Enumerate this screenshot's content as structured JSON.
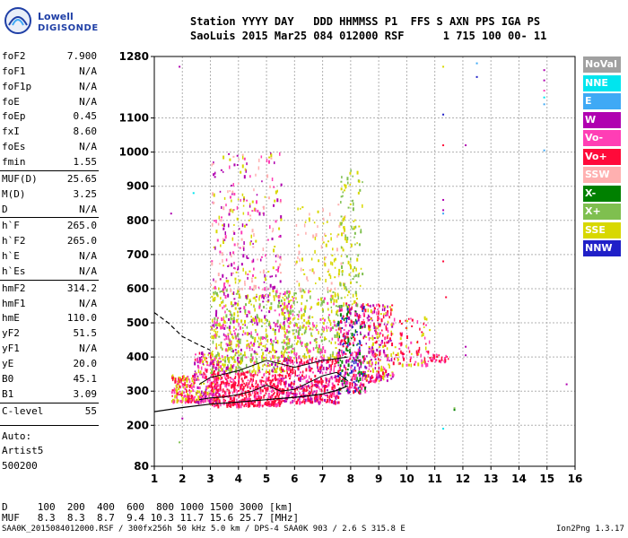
{
  "logo": {
    "line1": "Lowell",
    "line2": "DIGISONDE"
  },
  "header": {
    "row1": "Station YYYY DAY   DDD HHMMSS P1  FFS S AXN PPS IGA PS",
    "row2": "SaoLuis 2015 Mar25 084 012000 RSF      1 715 100 00- 11"
  },
  "params": [
    {
      "name": "foF2",
      "value": "7.900"
    },
    {
      "name": "foF1",
      "value": "N/A"
    },
    {
      "name": "foF1p",
      "value": "N/A"
    },
    {
      "name": "foE",
      "value": "N/A"
    },
    {
      "name": "foEp",
      "value": "0.45"
    },
    {
      "name": "fxI",
      "value": "8.60"
    },
    {
      "name": "foEs",
      "value": "N/A"
    },
    {
      "name": "fmin",
      "value": "1.55"
    },
    {
      "name": "MUF(D)",
      "value": "25.65"
    },
    {
      "name": "M(D)",
      "value": "3.25"
    },
    {
      "name": "D",
      "value": "N/A"
    },
    {
      "name": "h`F",
      "value": "265.0"
    },
    {
      "name": "h`F2",
      "value": "265.0"
    },
    {
      "name": "h`E",
      "value": "N/A"
    },
    {
      "name": "h`Es",
      "value": "N/A"
    },
    {
      "name": "hmF2",
      "value": "314.2"
    },
    {
      "name": "hmF1",
      "value": "N/A"
    },
    {
      "name": "hmE",
      "value": "110.0"
    },
    {
      "name": "yF2",
      "value": "51.5"
    },
    {
      "name": "yF1",
      "value": "N/A"
    },
    {
      "name": "yE",
      "value": "20.0"
    },
    {
      "name": "B0",
      "value": "45.1"
    },
    {
      "name": "B1",
      "value": "3.09"
    },
    {
      "name": "C-level",
      "value": "55"
    }
  ],
  "auto": {
    "line1": "Auto:",
    "line2": "Artist5",
    "line3": "500200"
  },
  "muf_table": {
    "row1": "D     100  200  400  600  800 1000 1500 3000 [km]",
    "row2": "MUF   8.3  8.3  8.7  9.4 10.3 11.7 15.6 25.7 [MHz]"
  },
  "footer": {
    "left": "SAA0K_2015084012000.RSF / 300fx256h 50 kHz 5.0 km / DPS-4 SAA0K 903 / 2.6 S 315.8 E",
    "right": "Ion2Png 1.3.17"
  },
  "legend": [
    {
      "label": "NoVal",
      "color": "#a0a0a0"
    },
    {
      "label": "NNE",
      "color": "#00e5ee"
    },
    {
      "label": "E",
      "color": "#3fa9f5"
    },
    {
      "label": "W",
      "color": "#b000b0"
    },
    {
      "label": "Vo-",
      "color": "#ff3eb5"
    },
    {
      "label": "Vo+",
      "color": "#ff0a3a"
    },
    {
      "label": "SSW",
      "color": "#ffb0b0"
    },
    {
      "label": "X-",
      "color": "#008000"
    },
    {
      "label": "X+",
      "color": "#7fbf4f"
    },
    {
      "label": "SSE",
      "color": "#d8d800"
    },
    {
      "label": "NNW",
      "color": "#2020c8"
    }
  ],
  "chart_data": {
    "type": "scatter",
    "x_ticks": [
      1,
      2,
      3,
      4,
      5,
      6,
      7,
      8,
      9,
      10,
      11,
      12,
      13,
      14,
      15,
      16
    ],
    "y_ticks": [
      80,
      200,
      300,
      400,
      500,
      600,
      700,
      800,
      900,
      1000,
      1100,
      1280
    ],
    "xlim": [
      1,
      16
    ],
    "ylim": [
      80,
      1280
    ],
    "grid": true,
    "echo_blobs": [
      {
        "x0": 1.6,
        "x1": 2.4,
        "y0": 270,
        "y1": 350,
        "n": 160,
        "colors": [
          "#ff0a3a",
          "#ff3eb5",
          "#d8d800"
        ]
      },
      {
        "x0": 2.4,
        "x1": 3.3,
        "y0": 270,
        "y1": 420,
        "n": 220,
        "colors": [
          "#ff0a3a",
          "#ff3eb5",
          "#d8d800",
          "#b000b0"
        ]
      },
      {
        "x0": 3.0,
        "x1": 5.5,
        "y0": 260,
        "y1": 360,
        "n": 500,
        "colors": [
          "#ff0a3a",
          "#ff3eb5",
          "#ff0a3a"
        ]
      },
      {
        "x0": 3.0,
        "x1": 5.8,
        "y0": 360,
        "y1": 600,
        "n": 600,
        "colors": [
          "#d8d800",
          "#d8d800",
          "#7fbf4f",
          "#ff3eb5",
          "#b000b0"
        ]
      },
      {
        "x0": 3.0,
        "x1": 5.5,
        "y0": 600,
        "y1": 1000,
        "n": 280,
        "colors": [
          "#d8d800",
          "#ff3eb5",
          "#ffb0b0",
          "#b000b0"
        ]
      },
      {
        "x0": 5.5,
        "x1": 7.6,
        "y0": 270,
        "y1": 400,
        "n": 420,
        "colors": [
          "#ff0a3a",
          "#ff0a3a",
          "#ff3eb5",
          "#b000b0"
        ]
      },
      {
        "x0": 5.5,
        "x1": 7.6,
        "y0": 400,
        "y1": 600,
        "n": 300,
        "colors": [
          "#d8d800",
          "#7fbf4f",
          "#ff3eb5"
        ]
      },
      {
        "x0": 6.0,
        "x1": 7.8,
        "y0": 600,
        "y1": 850,
        "n": 100,
        "colors": [
          "#d8d800",
          "#ffb0b0"
        ]
      },
      {
        "x0": 7.5,
        "x1": 8.5,
        "y0": 300,
        "y1": 560,
        "n": 340,
        "colors": [
          "#ff0a3a",
          "#b000b0",
          "#ff3eb5",
          "#2020c8",
          "#008000"
        ]
      },
      {
        "x0": 7.6,
        "x1": 8.4,
        "y0": 550,
        "y1": 950,
        "n": 110,
        "colors": [
          "#d8d800",
          "#7fbf4f"
        ]
      },
      {
        "x0": 8.5,
        "x1": 9.5,
        "y0": 330,
        "y1": 560,
        "n": 260,
        "colors": [
          "#ff0a3a",
          "#d8d800",
          "#ff3eb5",
          "#b000b0"
        ]
      },
      {
        "x0": 9.5,
        "x1": 10.8,
        "y0": 380,
        "y1": 520,
        "n": 90,
        "colors": [
          "#ff0a3a",
          "#d8d800",
          "#ff3eb5"
        ]
      },
      {
        "x0": 10.8,
        "x1": 11.5,
        "y0": 390,
        "y1": 410,
        "n": 30,
        "colors": [
          "#ff0a3a",
          "#ff3eb5"
        ]
      }
    ],
    "sparse_points": [
      {
        "x": 1.9,
        "y": 1250,
        "color": "#b000b0"
      },
      {
        "x": 2.4,
        "y": 880,
        "color": "#00e5ee"
      },
      {
        "x": 1.6,
        "y": 820,
        "color": "#b000b0"
      },
      {
        "x": 11.3,
        "y": 1250,
        "color": "#d8d800"
      },
      {
        "x": 11.3,
        "y": 1110,
        "color": "#2020c8"
      },
      {
        "x": 11.3,
        "y": 1020,
        "color": "#ff0a3a"
      },
      {
        "x": 11.3,
        "y": 860,
        "color": "#b000b0"
      },
      {
        "x": 11.3,
        "y": 830,
        "color": "#b000b0"
      },
      {
        "x": 11.3,
        "y": 820,
        "color": "#3fa9f5"
      },
      {
        "x": 11.3,
        "y": 680,
        "color": "#ff0a3a"
      },
      {
        "x": 11.4,
        "y": 575,
        "color": "#ff0a3a"
      },
      {
        "x": 11.3,
        "y": 190,
        "color": "#00e5ee"
      },
      {
        "x": 11.7,
        "y": 250,
        "color": "#7fbf4f"
      },
      {
        "x": 11.7,
        "y": 245,
        "color": "#008000"
      },
      {
        "x": 12.1,
        "y": 1020,
        "color": "#b000b0"
      },
      {
        "x": 12.1,
        "y": 430,
        "color": "#b000b0"
      },
      {
        "x": 12.1,
        "y": 405,
        "color": "#b000b0"
      },
      {
        "x": 12.5,
        "y": 1260,
        "color": "#3fa9f5"
      },
      {
        "x": 12.5,
        "y": 1220,
        "color": "#2020c8"
      },
      {
        "x": 14.9,
        "y": 1240,
        "color": "#b000b0"
      },
      {
        "x": 14.9,
        "y": 1210,
        "color": "#b000b0"
      },
      {
        "x": 14.9,
        "y": 1180,
        "color": "#ff3eb5"
      },
      {
        "x": 14.9,
        "y": 1160,
        "color": "#00e5ee"
      },
      {
        "x": 14.9,
        "y": 1140,
        "color": "#3fa9f5"
      },
      {
        "x": 14.9,
        "y": 1005,
        "color": "#3fa9f5"
      },
      {
        "x": 15.7,
        "y": 320,
        "color": "#b000b0"
      },
      {
        "x": 1.9,
        "y": 150,
        "color": "#7fbf4f"
      },
      {
        "x": 2.0,
        "y": 220,
        "color": "#b000b0"
      }
    ],
    "profile_dashed": {
      "x": [
        1.0,
        1.5,
        2.0,
        2.6,
        3.0
      ],
      "y": [
        530,
        500,
        460,
        435,
        420
      ]
    },
    "profile_solid": {
      "x": [
        1.0,
        2.0,
        3.0,
        4.0,
        5.0,
        6.0,
        6.5,
        7.0,
        7.5,
        7.9
      ],
      "y": [
        240,
        252,
        262,
        268,
        275,
        282,
        286,
        292,
        302,
        315
      ]
    },
    "trace_curves": [
      {
        "x": [
          2.6,
          3.0,
          3.5,
          4.0,
          4.5,
          5.0,
          5.5,
          6.0,
          6.5,
          7.0,
          7.5,
          7.9
        ],
        "y": [
          275,
          280,
          283,
          290,
          300,
          318,
          300,
          305,
          325,
          345,
          355,
          330
        ]
      },
      {
        "x": [
          2.6,
          3.0,
          3.5,
          4.0,
          4.5,
          5.0,
          5.5,
          6.0,
          6.5,
          7.0,
          7.5,
          7.9
        ],
        "y": [
          320,
          340,
          350,
          360,
          375,
          390,
          380,
          370,
          380,
          390,
          395,
          400
        ]
      }
    ]
  }
}
